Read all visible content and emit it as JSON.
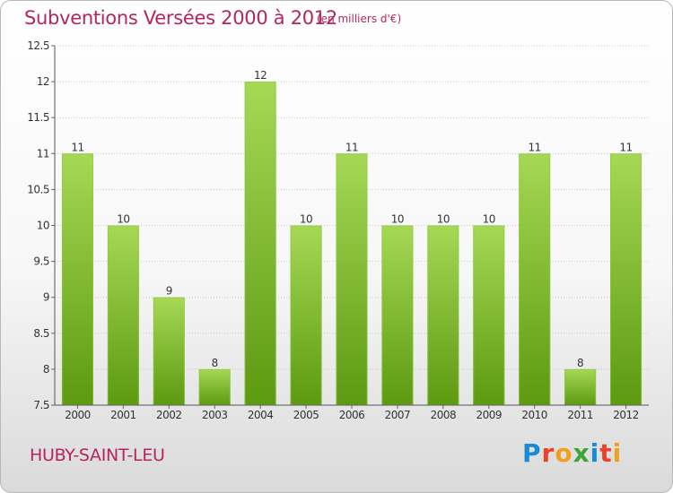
{
  "header": {
    "title": "Subventions Versées 2000 à 2012",
    "unit_note": "(en milliers d'€)"
  },
  "footer": {
    "location": "HUBY-SAINT-LEU",
    "brand_letters": [
      "P",
      "r",
      "o",
      "x",
      "i",
      "t",
      "i"
    ],
    "brand_colors": [
      "#1a8ad4",
      "#e8442b",
      "#f0a01c",
      "#3aa635",
      "#1a8ad4",
      "#e8442b",
      "#f0a01c"
    ]
  },
  "colors": {
    "title": "#b5255e",
    "bar_light": "#a6d855",
    "bar_dark": "#5c9a10",
    "grid": "#c8c8c8",
    "axis_text": "#333333"
  },
  "chart_data": {
    "type": "bar",
    "categories": [
      "2000",
      "2001",
      "2002",
      "2003",
      "2004",
      "2005",
      "2006",
      "2007",
      "2008",
      "2009",
      "2010",
      "2011",
      "2012"
    ],
    "values": [
      11,
      10,
      9,
      8,
      12,
      10,
      11,
      10,
      10,
      10,
      11,
      8,
      11
    ],
    "data_labels": [
      "11",
      "10",
      "9",
      "8",
      "12",
      "10",
      "11",
      "10",
      "10",
      "10",
      "11",
      "8",
      "11"
    ],
    "title": "Subventions Versées 2000 à 2012",
    "xlabel": "",
    "ylabel": "",
    "ylim": [
      7.5,
      12.5
    ],
    "yticks": [
      7.5,
      8,
      8.5,
      9,
      9.5,
      10,
      10.5,
      11,
      11.5,
      12,
      12.5
    ],
    "ytick_labels": [
      "7.5",
      "8",
      "8.5",
      "9",
      "9.5",
      "10",
      "10.5",
      "11",
      "11.5",
      "12",
      "12.5"
    ],
    "grid": true,
    "legend": "none"
  }
}
